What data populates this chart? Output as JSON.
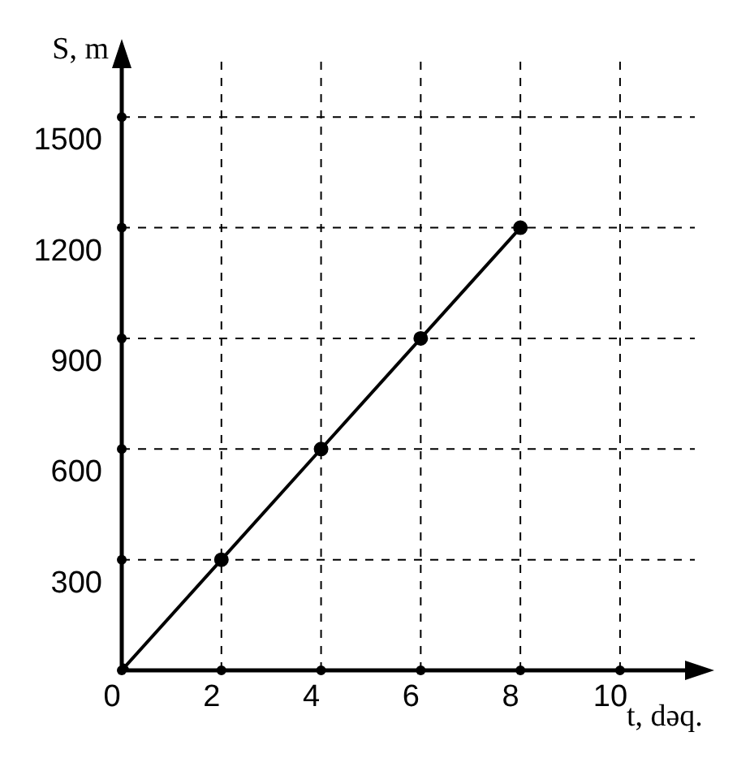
{
  "chart_data": {
    "type": "line",
    "xlabel": "t, dəq.",
    "ylabel": "S, m",
    "x": [
      0,
      2,
      4,
      6,
      8
    ],
    "series": [
      {
        "color": "#000000",
        "values": [
          0,
          300,
          600,
          900,
          1200
        ]
      }
    ],
    "xlim": [
      0,
      11.5
    ],
    "ylim": [
      0,
      1650
    ],
    "xticks": [
      0,
      2,
      4,
      6,
      8,
      10
    ],
    "yticks": [
      300,
      600,
      900,
      1200,
      1500
    ],
    "grid": true,
    "marker": "circle",
    "line_style": "solid",
    "legend": false
  }
}
